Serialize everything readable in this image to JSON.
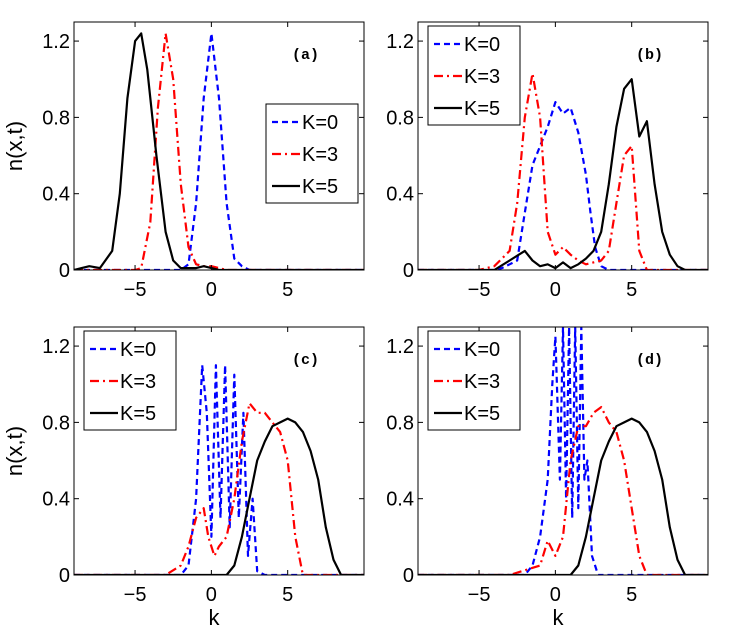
{
  "chart_data": [
    {
      "type": "line",
      "panel_label": "(a)",
      "xlim": [
        -9,
        10
      ],
      "ylim": [
        0,
        1.3
      ],
      "xticks": [
        -5,
        0,
        5
      ],
      "yticks": [
        0,
        0.4,
        0.8,
        1.2
      ],
      "xlabel": "",
      "ylabel": "n(x,t)",
      "legend_position": "center-right",
      "series": [
        {
          "name": "K=0",
          "color": "#0000ff",
          "style": "dashed",
          "x": [
            -9,
            -2,
            -1.5,
            -1,
            -0.5,
            0,
            0.5,
            1,
            1.5,
            2,
            2.5,
            10
          ],
          "y": [
            0,
            0,
            0.03,
            0.35,
            0.9,
            1.24,
            0.9,
            0.35,
            0.06,
            0.02,
            0,
            0
          ]
        },
        {
          "name": "K=3",
          "color": "#ff0000",
          "style": "dashdot",
          "x": [
            -9,
            -5,
            -4.6,
            -4,
            -3.5,
            -3,
            -2.5,
            -2,
            -1.5,
            -1,
            -0.5,
            0,
            0.5,
            1,
            10
          ],
          "y": [
            0,
            0,
            0.01,
            0.25,
            0.85,
            1.24,
            1.0,
            0.45,
            0.12,
            0.03,
            0.02,
            0.02,
            0.01,
            0,
            0
          ]
        },
        {
          "name": "K=5",
          "color": "#000000",
          "style": "solid",
          "x": [
            -9,
            -8.5,
            -8,
            -7.3,
            -6.5,
            -6,
            -5.5,
            -5,
            -4.6,
            -4.2,
            -3.6,
            -3,
            -2.5,
            -2,
            -1.5,
            -1,
            -0.5,
            0,
            0.5,
            10
          ],
          "y": [
            0,
            0.01,
            0.02,
            0.01,
            0.1,
            0.4,
            0.9,
            1.2,
            1.24,
            1.05,
            0.6,
            0.2,
            0.05,
            0.01,
            0.01,
            0.01,
            0.02,
            0.01,
            0,
            0
          ]
        }
      ]
    },
    {
      "type": "line",
      "panel_label": "(b)",
      "xlim": [
        -9,
        10
      ],
      "ylim": [
        0,
        1.3
      ],
      "xticks": [
        -5,
        0,
        5
      ],
      "yticks": [
        0,
        0.4,
        0.8,
        1.2
      ],
      "xlabel": "",
      "ylabel": "",
      "legend_position": "top-left",
      "series": [
        {
          "name": "K=0",
          "color": "#0000ff",
          "style": "dashed",
          "x": [
            -9,
            -4,
            -3.5,
            -3,
            -2.5,
            -2,
            -1.5,
            -1,
            -0.5,
            0,
            0.5,
            1,
            1.5,
            2,
            2.3,
            2.6,
            3,
            3.5,
            4,
            10
          ],
          "y": [
            0,
            0,
            0.01,
            0.03,
            0.05,
            0.3,
            0.55,
            0.65,
            0.75,
            0.88,
            0.82,
            0.85,
            0.72,
            0.5,
            0.3,
            0.12,
            0.02,
            0,
            0,
            0
          ]
        },
        {
          "name": "K=3",
          "color": "#ff0000",
          "style": "dashdot",
          "x": [
            -9,
            -5,
            -4,
            -3,
            -2.5,
            -2,
            -1.5,
            -1,
            -0.5,
            0,
            0.5,
            1,
            1.5,
            2,
            2.5,
            3,
            3.5,
            4,
            4.5,
            5,
            5.5,
            6,
            10
          ],
          "y": [
            0,
            0,
            0.02,
            0.1,
            0.35,
            0.8,
            1.03,
            0.8,
            0.2,
            0.08,
            0.12,
            0.08,
            0.05,
            0.03,
            0.04,
            0.05,
            0.1,
            0.35,
            0.6,
            0.65,
            0.1,
            0,
            0
          ]
        },
        {
          "name": "K=5",
          "color": "#000000",
          "style": "solid",
          "x": [
            -9,
            -4,
            -3,
            -2,
            -1.5,
            -1,
            -0.5,
            0,
            0.5,
            1,
            1.5,
            2,
            2.5,
            3,
            3.5,
            4,
            4.5,
            5,
            5.5,
            6,
            6.5,
            7,
            7.5,
            8,
            8.5,
            10
          ],
          "y": [
            0,
            0,
            0.05,
            0.1,
            0.05,
            0.02,
            0.03,
            0.01,
            0.04,
            0.01,
            0.03,
            0.06,
            0.1,
            0.2,
            0.45,
            0.75,
            0.95,
            1.0,
            0.7,
            0.78,
            0.45,
            0.2,
            0.08,
            0.02,
            0,
            0
          ]
        }
      ]
    },
    {
      "type": "line",
      "panel_label": "(c)",
      "xlim": [
        -9,
        10
      ],
      "ylim": [
        0,
        1.3
      ],
      "xticks": [
        -5,
        0,
        5
      ],
      "yticks": [
        0,
        0.4,
        0.8,
        1.2
      ],
      "xlabel": "k",
      "ylabel": "n(x,t)",
      "legend_position": "top-left",
      "series": [
        {
          "name": "K=0",
          "color": "#0000ff",
          "style": "dashed",
          "x": [
            -9,
            -2,
            -1.5,
            -1,
            -0.6,
            -0.3,
            0,
            0.3,
            0.6,
            0.9,
            1.2,
            1.5,
            1.8,
            2.1,
            2.4,
            2.7,
            3,
            3.5,
            10
          ],
          "y": [
            0,
            0,
            0.05,
            0.4,
            1.1,
            0.85,
            0.2,
            1.1,
            0.3,
            1.1,
            0.25,
            1.05,
            0.3,
            0.85,
            0.1,
            0.4,
            0.02,
            0,
            0
          ]
        },
        {
          "name": "K=3",
          "color": "#ff0000",
          "style": "dashdot",
          "x": [
            -9,
            -3,
            -2,
            -1.5,
            -1,
            -0.5,
            -0.2,
            0.2,
            0.5,
            1,
            1.5,
            2,
            2.5,
            3,
            3.5,
            4,
            4.5,
            5,
            5.5,
            6,
            10
          ],
          "y": [
            0,
            0,
            0.05,
            0.15,
            0.3,
            0.35,
            0.2,
            0.1,
            0.15,
            0.2,
            0.4,
            0.7,
            0.9,
            0.85,
            0.85,
            0.8,
            0.75,
            0.6,
            0.2,
            0,
            0
          ]
        },
        {
          "name": "K=5",
          "color": "#000000",
          "style": "solid",
          "x": [
            -9,
            1,
            1.5,
            2,
            2.5,
            3,
            3.5,
            4,
            4.5,
            5,
            5.5,
            6,
            6.5,
            7,
            7.5,
            8,
            8.5,
            10
          ],
          "y": [
            0,
            0,
            0.05,
            0.2,
            0.4,
            0.6,
            0.7,
            0.78,
            0.8,
            0.82,
            0.8,
            0.75,
            0.65,
            0.5,
            0.25,
            0.08,
            0,
            0
          ]
        }
      ]
    },
    {
      "type": "line",
      "panel_label": "(d)",
      "xlim": [
        -9,
        10
      ],
      "ylim": [
        0,
        1.3
      ],
      "xticks": [
        -5,
        0,
        5
      ],
      "yticks": [
        0,
        0.4,
        0.8,
        1.2
      ],
      "xlabel": "k",
      "ylabel": "",
      "legend_position": "top-left",
      "series": [
        {
          "name": "K=0",
          "color": "#0000ff",
          "style": "dashed",
          "x": [
            -9,
            -2,
            -1.5,
            -1,
            -0.5,
            -0.2,
            0,
            0.3,
            0.5,
            0.7,
            0.9,
            1.1,
            1.3,
            1.5,
            1.7,
            1.9,
            2.1,
            2.4,
            2.8,
            10
          ],
          "y": [
            0,
            0,
            0.05,
            0.2,
            0.5,
            1.0,
            1.25,
            0.5,
            1.3,
            0.4,
            1.3,
            0.3,
            1.3,
            0.35,
            1.3,
            0.5,
            0.6,
            0.1,
            0,
            0
          ]
        },
        {
          "name": "K=3",
          "color": "#ff0000",
          "style": "dashdot",
          "x": [
            -9,
            -3,
            -1,
            -0.5,
            0,
            0.5,
            1,
            1.5,
            2,
            2.5,
            3,
            3.5,
            4,
            4.5,
            5,
            5.5,
            6,
            10
          ],
          "y": [
            0,
            0,
            0.05,
            0.18,
            0.1,
            0.2,
            0.6,
            0.78,
            0.78,
            0.85,
            0.88,
            0.8,
            0.75,
            0.6,
            0.35,
            0.1,
            0,
            0
          ]
        },
        {
          "name": "K=5",
          "color": "#000000",
          "style": "solid",
          "x": [
            -9,
            1,
            1.5,
            2,
            2.5,
            3,
            3.5,
            4,
            4.5,
            5,
            5.5,
            6,
            6.5,
            7,
            7.5,
            8,
            8.5,
            10
          ],
          "y": [
            0,
            0,
            0.05,
            0.2,
            0.4,
            0.6,
            0.7,
            0.78,
            0.8,
            0.82,
            0.8,
            0.75,
            0.65,
            0.5,
            0.25,
            0.08,
            0,
            0
          ]
        }
      ]
    }
  ]
}
